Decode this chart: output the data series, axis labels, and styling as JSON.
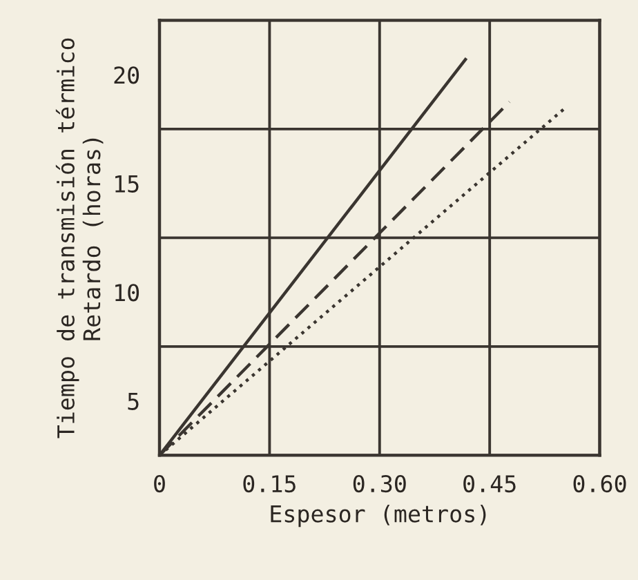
{
  "chart_data": {
    "type": "line",
    "xlabel": "Espesor (metros)",
    "ylabel": "Tiempo de transmisión térmico\nRetardo (horas)",
    "xlim": [
      0,
      0.6
    ],
    "ylim": [
      2.5,
      22.5
    ],
    "xticks": [
      {
        "value": 0,
        "label": "0"
      },
      {
        "value": 0.15,
        "label": "0.15"
      },
      {
        "value": 0.3,
        "label": "0.30"
      },
      {
        "value": 0.45,
        "label": "0.45"
      },
      {
        "value": 0.6,
        "label": "0.60"
      }
    ],
    "yticks": [
      5,
      10,
      15,
      20,
      {
        "value": 2.5,
        "label": null
      },
      {
        "value": 7.5,
        "label": null
      },
      {
        "value": 12.5,
        "label": null
      },
      {
        "value": 17.5,
        "label": null
      },
      {
        "value": 22.5,
        "label": null
      }
    ],
    "grid": true,
    "series": [
      {
        "color": "#3a3530",
        "line_style": "solid",
        "x": [
          0,
          0.417
        ],
        "values": [
          2.5,
          20.7
        ]
      },
      {
        "color": "#3a3530",
        "line_style": "dashed",
        "x": [
          0,
          0.477
        ],
        "values": [
          2.5,
          18.75
        ]
      },
      {
        "color": "#3a3530",
        "line_style": "dotted",
        "x": [
          0,
          0.554
        ],
        "values": [
          2.5,
          18.5
        ]
      }
    ]
  }
}
